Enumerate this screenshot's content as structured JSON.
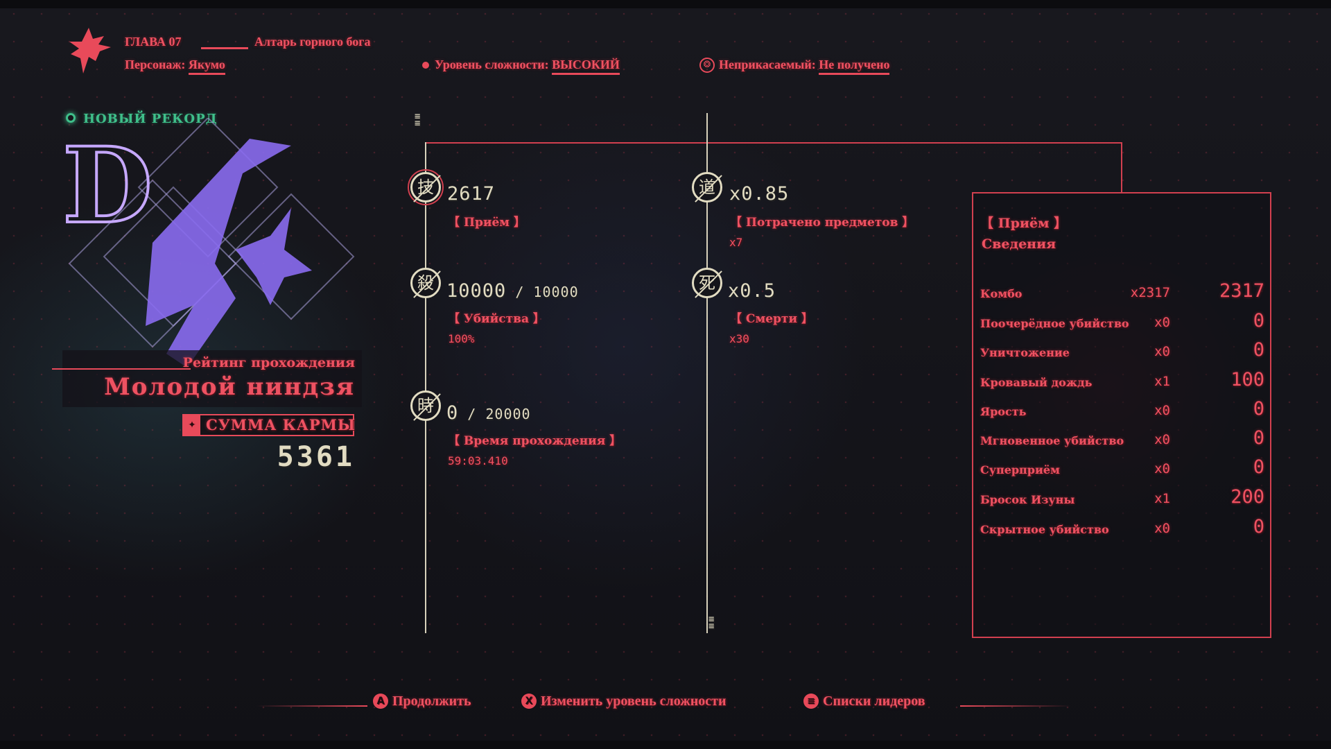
{
  "header": {
    "chapter": "ГЛАВА 07",
    "stage": "Алтарь горного бога",
    "character_label": "Персонаж:",
    "character": "Якумо",
    "difficulty_label": "Уровень сложности:",
    "difficulty": "ВЫСОКИЙ",
    "untouchable_label": "Неприкасаемый:",
    "untouchable": "Не получено"
  },
  "rank": {
    "new_record": "НОВЫЙ РЕКОРД",
    "rating_label": "Рейтинг прохождения",
    "rating": "Молодой ниндзя",
    "karma_label": "СУММА КАРМЫ",
    "karma": "5361",
    "emblem": "D-rank-emblem"
  },
  "stats": [
    {
      "icon": "技",
      "value": "2617",
      "max": "",
      "label": "Приём",
      "sub": ""
    },
    {
      "icon": "殺",
      "value": "10000",
      "max": "10000",
      "label": "Убийства",
      "sub": "100%"
    },
    {
      "icon": "時",
      "value": "0",
      "max": "20000",
      "label": "Время прохождения",
      "sub": "59:03.410"
    },
    {
      "icon": "道",
      "value": "x0.85",
      "max": "",
      "label": "Потрачено предметов",
      "sub": "x7"
    },
    {
      "icon": "死",
      "value": "x0.5",
      "max": "",
      "label": "Смерти",
      "sub": "x30"
    }
  ],
  "details": {
    "title": "Приём",
    "subtitle": "Сведения",
    "rows": [
      {
        "name": "Комбо",
        "mult": "x2317",
        "value": "2317"
      },
      {
        "name": "Поочерёдное убийство",
        "mult": "x0",
        "value": "0"
      },
      {
        "name": "Уничтожение",
        "mult": "x0",
        "value": "0"
      },
      {
        "name": "Кровавый дождь",
        "mult": "x1",
        "value": "100"
      },
      {
        "name": "Ярость",
        "mult": "x0",
        "value": "0"
      },
      {
        "name": "Мгновенное убийство",
        "mult": "x0",
        "value": "0"
      },
      {
        "name": "Суперприём",
        "mult": "x0",
        "value": "0"
      },
      {
        "name": "Бросок Изуны",
        "mult": "x1",
        "value": "200"
      },
      {
        "name": "Скрытное убийство",
        "mult": "x0",
        "value": "0"
      }
    ]
  },
  "footer": {
    "continue_key": "A",
    "continue": "Продолжить",
    "difficulty_key": "X",
    "difficulty": "Изменить уровень сложности",
    "leaderboard_key": "≡",
    "leaderboard": "Списки лидеров"
  },
  "colors": {
    "accent": "#e84a5a",
    "cream": "#e2dcc2",
    "record": "#3fbf8a",
    "emblem": "#8a6cf0"
  }
}
